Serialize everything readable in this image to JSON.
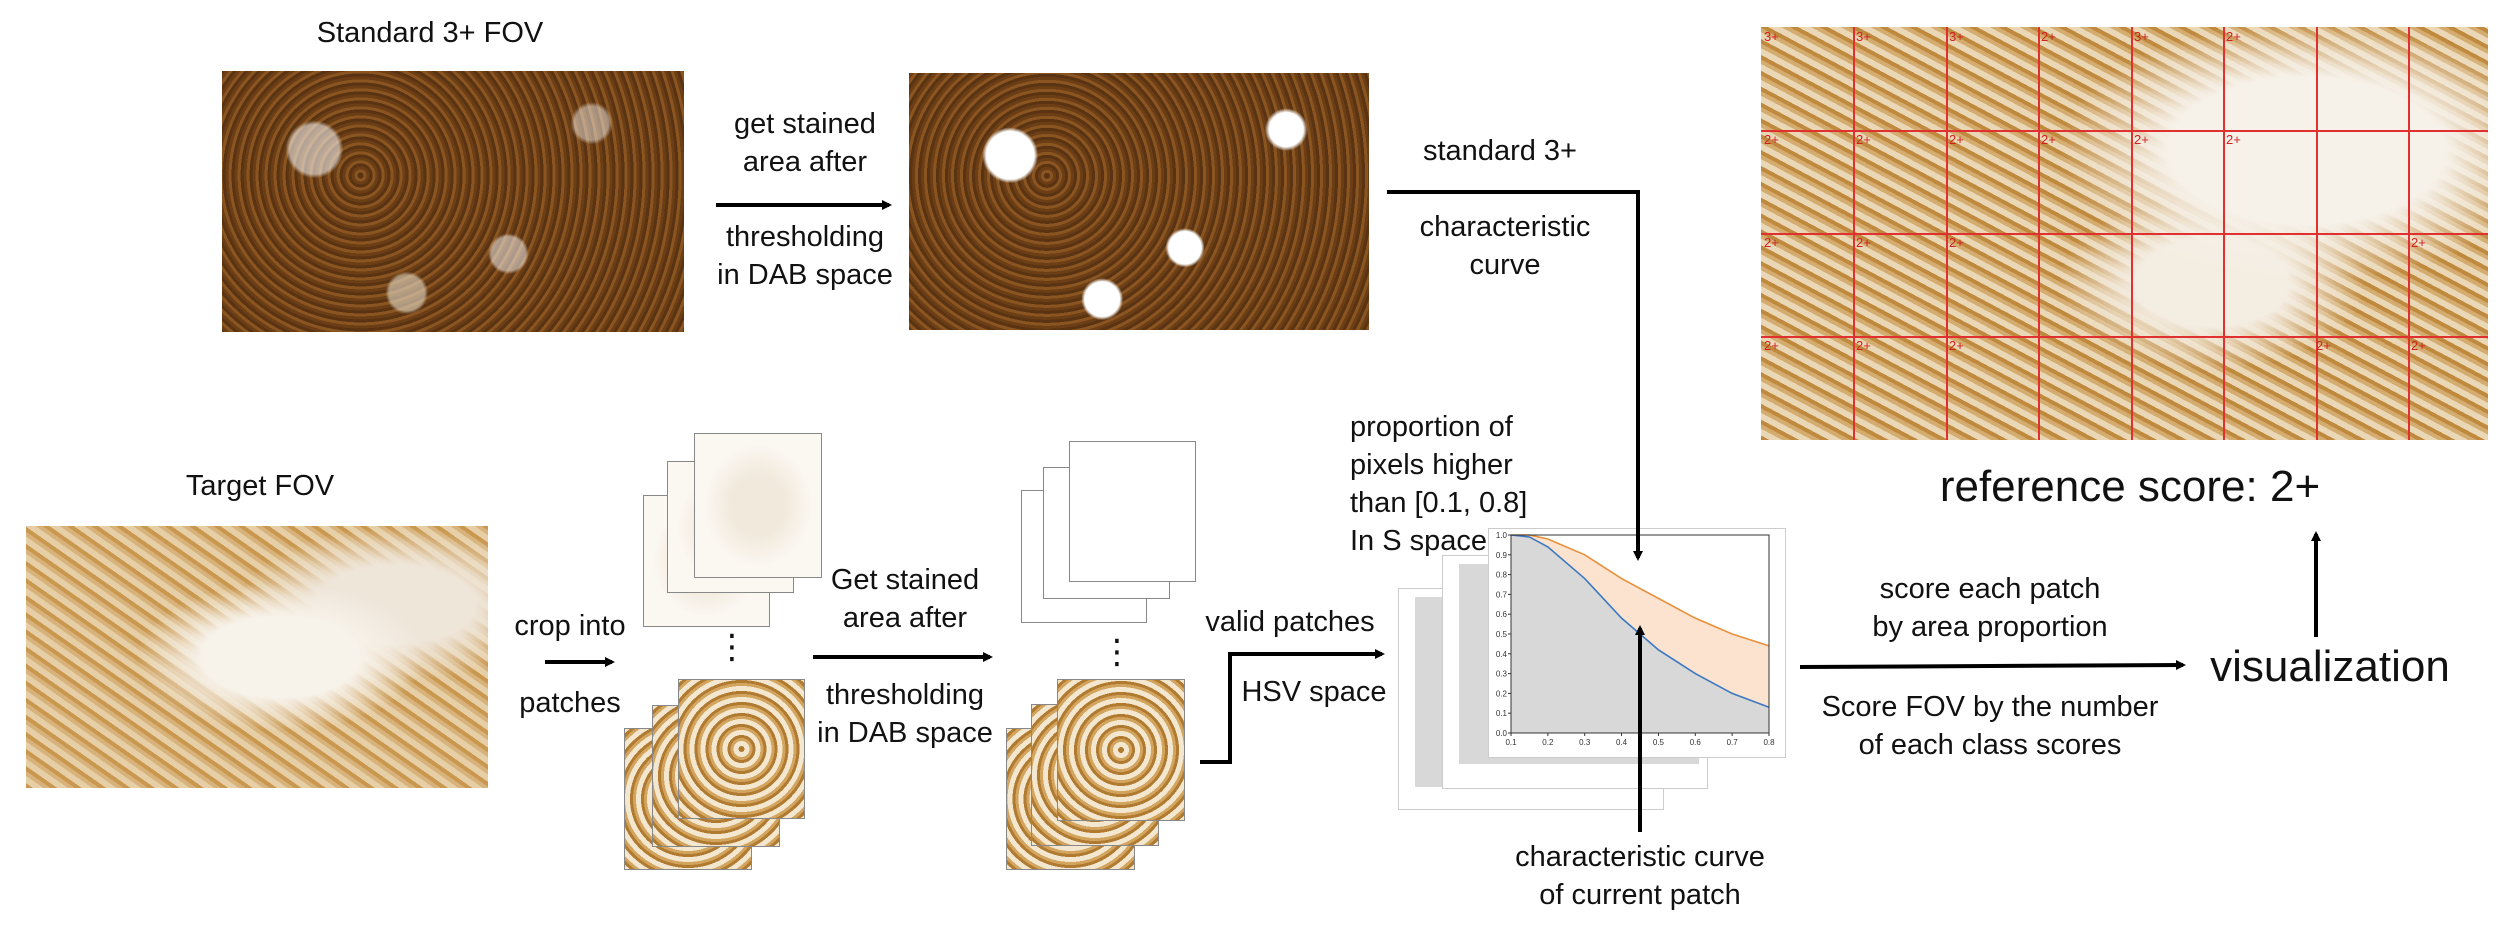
{
  "labels": {
    "standard_title": "Standard 3+ FOV",
    "target_title": "Target FOV",
    "get_stained_top_1": "get stained\narea after",
    "get_stained_top_2": "thresholding\nin DAB space",
    "standard3_1": "standard 3+",
    "standard3_2": "characteristic\ncurve",
    "crop_1": "crop into",
    "crop_2": "patches",
    "get_stained_bot_1": "Get stained\narea after",
    "get_stained_bot_2": "thresholding\nin DAB space",
    "valid_patches": "valid patches",
    "hsv_space": "HSV space",
    "proportion": "proportion of\npixels higher\nthan [0.1, 0.8]\nIn S space",
    "char_curve_patch": "characteristic curve\nof current patch",
    "score_patch": "score each patch\nby area proportion",
    "score_fov": "Score FOV by the number\nof each class scores",
    "visualization": "visualization",
    "reference_score": "reference score: 2+",
    "dots_1": "⋮",
    "dots_2": "⋮"
  },
  "grid_labels": [
    "3+",
    "3+",
    "3+",
    "2+",
    "3+",
    "2+",
    "2+",
    "2+",
    "2+",
    "2+",
    "2+",
    "2+",
    "2+",
    "2+",
    "2+",
    "2+",
    "2+",
    "2+",
    "2+",
    "2+",
    "2+"
  ],
  "chart_data": {
    "type": "area",
    "x_ticks": [
      "0.1",
      "0.2",
      "0.3",
      "0.4",
      "0.5",
      "0.6",
      "0.7",
      "0.8"
    ],
    "y_ticks": [
      "0.0",
      "0.1",
      "0.2",
      "0.3",
      "0.4",
      "0.5",
      "0.6",
      "0.7",
      "0.8",
      "0.9",
      "1.0"
    ],
    "xlim": [
      0.1,
      0.8
    ],
    "ylim": [
      0.0,
      1.0
    ],
    "series": [
      {
        "x": [
          0.1,
          0.15,
          0.2,
          0.3,
          0.4,
          0.5,
          0.6,
          0.7,
          0.8
        ],
        "y": [
          1.0,
          1.0,
          0.98,
          0.9,
          0.78,
          0.68,
          0.58,
          0.5,
          0.44
        ],
        "color": "#e8903c"
      },
      {
        "x": [
          0.1,
          0.15,
          0.2,
          0.3,
          0.4,
          0.5,
          0.6,
          0.7,
          0.8
        ],
        "y": [
          1.0,
          0.99,
          0.94,
          0.78,
          0.58,
          0.42,
          0.3,
          0.2,
          0.13
        ],
        "color": "#3a78c0"
      }
    ],
    "fill_colors": {
      "between": "#fbe3cf",
      "under": "#d8d8d8"
    }
  }
}
